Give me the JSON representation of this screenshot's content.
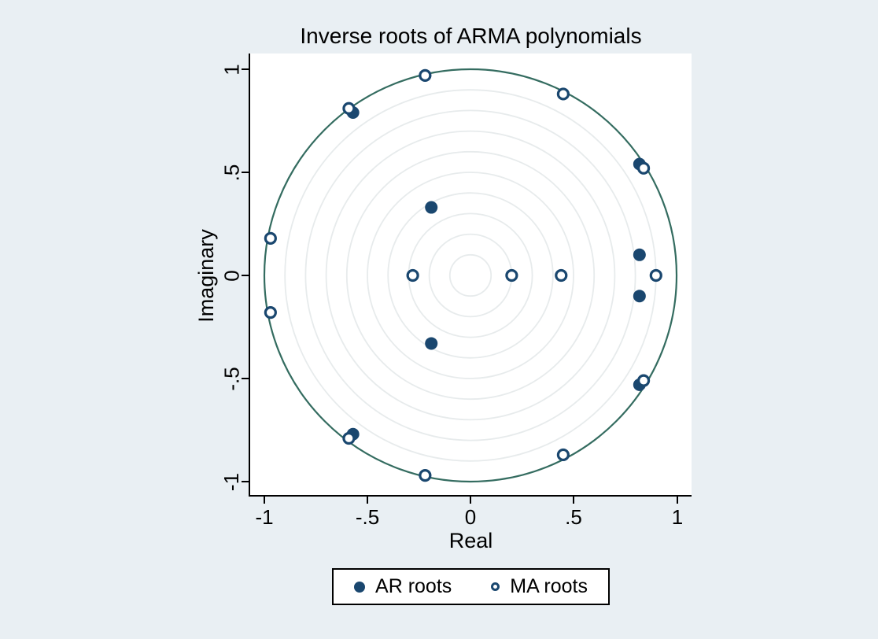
{
  "figure": {
    "title": "Inverse roots of ARMA polynomials",
    "xlabel": "Real",
    "ylabel": "Imaginary"
  },
  "legend": {
    "ar_label": "AR roots",
    "ma_label": "MA roots",
    "position": "bottom-center"
  },
  "chart_data": {
    "type": "scatter",
    "title": "Inverse roots of ARMA polynomials",
    "xlabel": "Real",
    "ylabel": "Imaginary",
    "xlim": [
      -1.07,
      1.07
    ],
    "ylim": [
      -1.07,
      1.07
    ],
    "x_ticks": [
      "-1",
      "-.5",
      "0",
      ".5",
      "1"
    ],
    "y_ticks": [
      "1",
      ".5",
      "0",
      "-.5",
      "-1"
    ],
    "x_tick_values": [
      -1,
      -0.5,
      0,
      0.5,
      1
    ],
    "y_tick_values": [
      1,
      0.5,
      0,
      -0.5,
      -1
    ],
    "grid": "concentric-circles",
    "grid_circle_radii": [
      0.1,
      0.2,
      0.3,
      0.4,
      0.5,
      0.6,
      0.7,
      0.8,
      0.9
    ],
    "unit_circle_radius": 1.0,
    "legend_position": "bottom",
    "series": [
      {
        "name": "AR roots",
        "marker": "filled-circle",
        "points": [
          [
            -0.19,
            0.33
          ],
          [
            -0.19,
            -0.33
          ],
          [
            0.82,
            0.1
          ],
          [
            0.82,
            -0.1
          ],
          [
            0.82,
            0.54
          ],
          [
            0.82,
            -0.53
          ],
          [
            -0.57,
            0.79
          ],
          [
            -0.57,
            -0.77
          ]
        ]
      },
      {
        "name": "MA roots",
        "marker": "hollow-circle",
        "points": [
          [
            -0.22,
            0.97
          ],
          [
            -0.22,
            -0.97
          ],
          [
            -0.59,
            0.81
          ],
          [
            -0.59,
            -0.79
          ],
          [
            -0.97,
            0.18
          ],
          [
            -0.97,
            -0.18
          ],
          [
            0.45,
            0.88
          ],
          [
            0.45,
            -0.87
          ],
          [
            0.84,
            0.52
          ],
          [
            0.84,
            -0.51
          ],
          [
            -0.28,
            0.0
          ],
          [
            0.2,
            0.0
          ],
          [
            0.44,
            0.0
          ],
          [
            0.9,
            0.0
          ]
        ]
      }
    ],
    "colors": {
      "background": "#e9eff3",
      "plot_background": "#ffffff",
      "marker": "#1a476f",
      "unit_circle": "#346c60",
      "grid": "#e7ebec",
      "axis": "#000000",
      "text": "#000000"
    }
  }
}
